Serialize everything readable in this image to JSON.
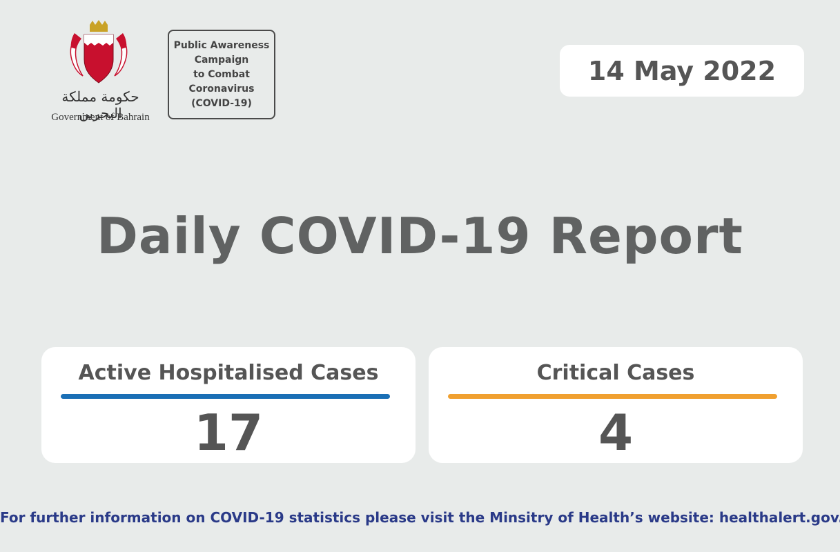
{
  "logo": {
    "arabic_name": "حكومة مملكة البحرين",
    "english_name": "Government of Bahrain",
    "icon": "bahrain-emblem-icon"
  },
  "campaign": {
    "text": "Public Awareness\nCampaign\nto Combat\nCoronavirus\n(COVID-19)"
  },
  "date": "14 May 2022",
  "title": "Daily COVID-19 Report",
  "stats": [
    {
      "label": "Active Hospitalised Cases",
      "value": "17",
      "color": "#1a6fb5"
    },
    {
      "label": "Critical Cases",
      "value": "4",
      "color": "#f0a030"
    }
  ],
  "footer": "For further information on COVID-19 statistics please visit the Minsitry of Health’s website: healthalert.gov.bh",
  "colors": {
    "background": "#e8ebea",
    "footer_text": "#2a3a88",
    "title_text": "#606262"
  }
}
